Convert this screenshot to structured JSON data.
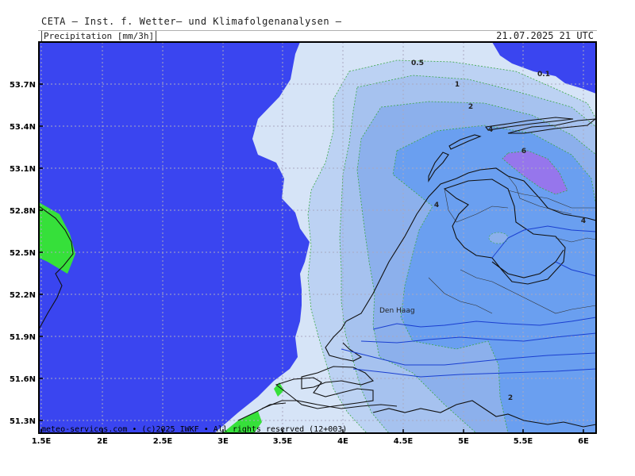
{
  "header": {
    "title": "CETA — Inst. f. Wetter— und Klimafolgenanalysen —",
    "parameter": "Precipitation [mm/3h]",
    "valid_time": "21.07.2025 21 UTC"
  },
  "axes": {
    "x_ticks": [
      "1.5E",
      "2E",
      "2.5E",
      "3E",
      "3.5E",
      "4E",
      "4.5E",
      "5E",
      "5.5E",
      "6E"
    ],
    "y_ticks": [
      "53.7N",
      "53.4N",
      "53.1N",
      "52.8N",
      "52.5N",
      "52.2N",
      "51.9N",
      "51.6N",
      "51.3N"
    ]
  },
  "contour_labels": [
    "0.5",
    "1",
    "2",
    "4",
    "6",
    "0.1",
    "4",
    "4",
    "2"
  ],
  "places": {
    "den_haag": "Den Haag"
  },
  "credit": "meteo-services.com • (c)2025 IWKF • All rights reserved (12+003)",
  "colors": {
    "sea": "#3a45f0",
    "p_0_1": "#d6e4f7",
    "p_0_5": "#bcd2f3",
    "p_1": "#a6c2ef",
    "p_2": "#8cb0ec",
    "p_4": "#6a9ff0",
    "p_6": "#9676ec",
    "land_green": "#36e03a"
  }
}
